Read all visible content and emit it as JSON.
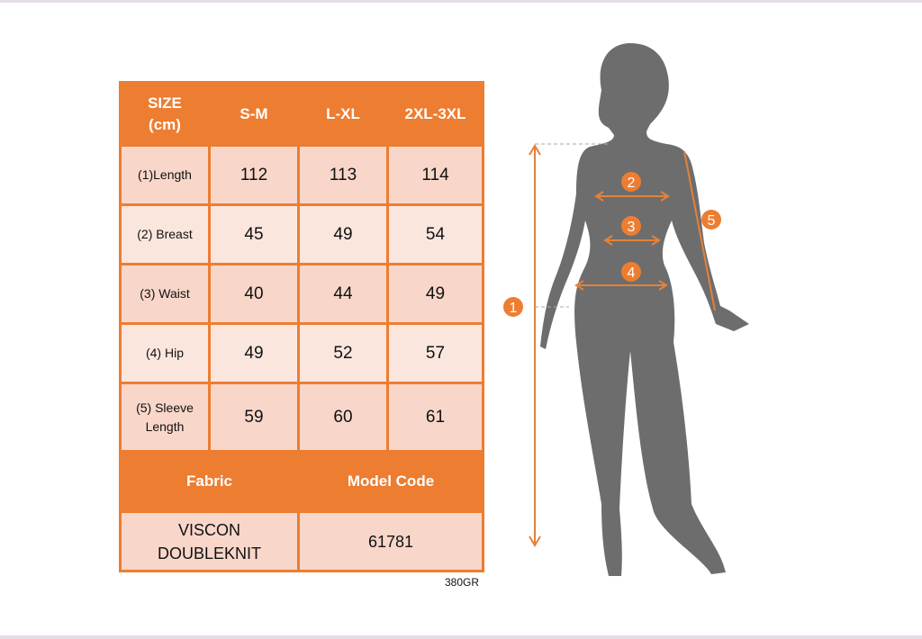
{
  "table": {
    "header": [
      "SIZE\n(cm)",
      "S-M",
      "L-XL",
      "2XL-3XL"
    ],
    "rows": [
      {
        "label": "(1)Length",
        "values": [
          "112",
          "113",
          "114"
        ]
      },
      {
        "label": "(2) Breast",
        "values": [
          "45",
          "49",
          "54"
        ]
      },
      {
        "label": "(3) Waist",
        "values": [
          "40",
          "44",
          "49"
        ]
      },
      {
        "label": "(4) Hip",
        "values": [
          "49",
          "52",
          "57"
        ]
      },
      {
        "label": "(5) Sleeve Length",
        "values": [
          "59",
          "60",
          "61"
        ]
      }
    ],
    "fabric_label": "Fabric",
    "model_code_label": "Model Code",
    "fabric_value": "VISCON DOUBLEKNIT",
    "model_code_value": "61781"
  },
  "weight_note": "380GR",
  "figure": {
    "markers": [
      "1",
      "2",
      "3",
      "4",
      "5"
    ]
  },
  "colors": {
    "accent": "#ED7D31",
    "cell_dark": "#F8D6C9",
    "cell_light": "#FBE6DE",
    "silhouette": "#6d6d6d"
  }
}
